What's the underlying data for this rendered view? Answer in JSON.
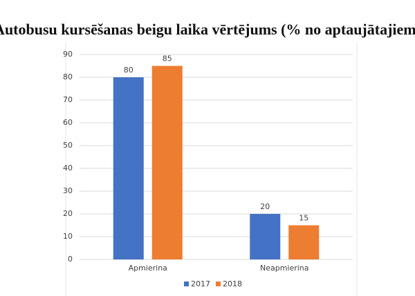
{
  "chart_data": {
    "type": "bar",
    "title": "Autobusu kursēšanas beigu laika vērtējums (% no aptaujātajiem)",
    "categories": [
      "Apmierina",
      "Neapmierina"
    ],
    "series": [
      {
        "name": "2017",
        "color": "#4472c4",
        "values": [
          80,
          20
        ]
      },
      {
        "name": "2018",
        "color": "#ed7d31",
        "values": [
          85,
          15
        ]
      }
    ],
    "ylim": [
      0,
      90
    ],
    "yticks": [
      0,
      10,
      20,
      30,
      40,
      50,
      60,
      70,
      80,
      90
    ],
    "grid": true,
    "legend": "bottom"
  }
}
